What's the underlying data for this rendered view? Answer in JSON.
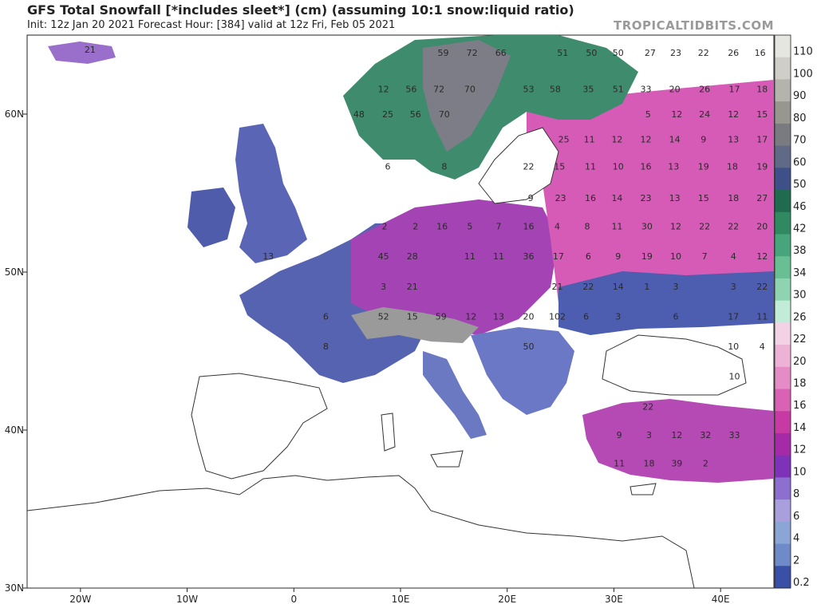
{
  "header": {
    "title": "GFS Total Snowfall [*includes sleet*] (cm) (assuming 10:1 snow:liquid ratio)",
    "subtitle": "Init: 12z Jan 20 2021   Forecast Hour: [384]   valid at 12z Fri, Feb 05 2021",
    "credit": "TROPICALTIDBITS.COM"
  },
  "map": {
    "x_axis": {
      "range": [
        -25,
        45
      ],
      "ticks": [
        -20,
        -10,
        0,
        10,
        20,
        30,
        40
      ],
      "tick_labels": [
        "20W",
        "10W",
        "0",
        "10E",
        "20E",
        "30E",
        "40E"
      ]
    },
    "y_axis": {
      "range": [
        30,
        65
      ],
      "ticks": [
        30,
        40,
        50,
        60
      ],
      "tick_labels": [
        "30N",
        "40N",
        "50N",
        "60N"
      ]
    }
  },
  "legend": {
    "levels": [
      "110",
      "100",
      "90",
      "80",
      "70",
      "60",
      "50",
      "46",
      "42",
      "38",
      "34",
      "30",
      "26",
      "22",
      "20",
      "18",
      "16",
      "14",
      "12",
      "10",
      "8",
      "6",
      "4",
      "2",
      "0.2"
    ],
    "colors": [
      "#e6e6e0",
      "#cfcfc7",
      "#b4b4ad",
      "#97978f",
      "#7a7b80",
      "#606a86",
      "#3f4f88",
      "#1f6b4f",
      "#2f8a62",
      "#46a57a",
      "#67bf93",
      "#8ed4b0",
      "#c2ecd8",
      "#f4d2e6",
      "#eeb2d6",
      "#e58cc6",
      "#d962b4",
      "#c83aa3",
      "#a52aa8",
      "#7d32b8",
      "#8c6fce",
      "#a89fdc",
      "#8ba6d6",
      "#6f8ac8",
      "#3a4fa6"
    ]
  },
  "values": [
    {
      "t": "21",
      "lon": -19.1,
      "lat": 64.1
    },
    {
      "t": "12",
      "lon": 8.4,
      "lat": 61.6
    },
    {
      "t": "56",
      "lon": 11.0,
      "lat": 61.6
    },
    {
      "t": "72",
      "lon": 13.6,
      "lat": 61.6
    },
    {
      "t": "70",
      "lon": 16.5,
      "lat": 61.6
    },
    {
      "t": "72",
      "lon": 16.7,
      "lat": 63.9
    },
    {
      "t": "66",
      "lon": 19.4,
      "lat": 63.9
    },
    {
      "t": "59",
      "lon": 14.0,
      "lat": 63.9
    },
    {
      "t": "51",
      "lon": 25.2,
      "lat": 63.9
    },
    {
      "t": "50",
      "lon": 27.9,
      "lat": 63.9
    },
    {
      "t": "50",
      "lon": 30.4,
      "lat": 63.9
    },
    {
      "t": "27",
      "lon": 33.4,
      "lat": 63.9
    },
    {
      "t": "23",
      "lon": 35.8,
      "lat": 63.9
    },
    {
      "t": "22",
      "lon": 38.4,
      "lat": 63.9
    },
    {
      "t": "26",
      "lon": 41.2,
      "lat": 63.9
    },
    {
      "t": "16",
      "lon": 43.7,
      "lat": 63.9
    },
    {
      "t": "53",
      "lon": 22.0,
      "lat": 61.6
    },
    {
      "t": "58",
      "lon": 24.5,
      "lat": 61.6
    },
    {
      "t": "35",
      "lon": 27.6,
      "lat": 61.6
    },
    {
      "t": "51",
      "lon": 30.4,
      "lat": 61.6
    },
    {
      "t": "33",
      "lon": 33.0,
      "lat": 61.6
    },
    {
      "t": "20",
      "lon": 35.7,
      "lat": 61.6
    },
    {
      "t": "26",
      "lon": 38.5,
      "lat": 61.6
    },
    {
      "t": "17",
      "lon": 41.3,
      "lat": 61.6
    },
    {
      "t": "18",
      "lon": 43.9,
      "lat": 61.6
    },
    {
      "t": "48",
      "lon": 6.1,
      "lat": 60.0
    },
    {
      "t": "25",
      "lon": 8.8,
      "lat": 60.0
    },
    {
      "t": "56",
      "lon": 11.4,
      "lat": 60.0
    },
    {
      "t": "70",
      "lon": 14.1,
      "lat": 60.0
    },
    {
      "t": "5",
      "lon": 33.2,
      "lat": 60.0
    },
    {
      "t": "12",
      "lon": 35.9,
      "lat": 60.0
    },
    {
      "t": "24",
      "lon": 38.5,
      "lat": 60.0
    },
    {
      "t": "12",
      "lon": 41.2,
      "lat": 60.0
    },
    {
      "t": "15",
      "lon": 43.9,
      "lat": 60.0
    },
    {
      "t": "25",
      "lon": 25.3,
      "lat": 58.4
    },
    {
      "t": "11",
      "lon": 27.7,
      "lat": 58.4
    },
    {
      "t": "12",
      "lon": 30.3,
      "lat": 58.4
    },
    {
      "t": "12",
      "lon": 33.0,
      "lat": 58.4
    },
    {
      "t": "14",
      "lon": 35.7,
      "lat": 58.4
    },
    {
      "t": "9",
      "lon": 38.4,
      "lat": 58.4
    },
    {
      "t": "13",
      "lon": 41.2,
      "lat": 58.4
    },
    {
      "t": "17",
      "lon": 43.9,
      "lat": 58.4
    },
    {
      "t": "6",
      "lon": 8.8,
      "lat": 56.7
    },
    {
      "t": "8",
      "lon": 14.1,
      "lat": 56.7
    },
    {
      "t": "22",
      "lon": 22.0,
      "lat": 56.7
    },
    {
      "t": "15",
      "lon": 24.9,
      "lat": 56.7
    },
    {
      "t": "11",
      "lon": 27.8,
      "lat": 56.7
    },
    {
      "t": "10",
      "lon": 30.4,
      "lat": 56.7
    },
    {
      "t": "16",
      "lon": 33.0,
      "lat": 56.7
    },
    {
      "t": "13",
      "lon": 35.6,
      "lat": 56.7
    },
    {
      "t": "19",
      "lon": 38.4,
      "lat": 56.7
    },
    {
      "t": "18",
      "lon": 41.1,
      "lat": 56.7
    },
    {
      "t": "19",
      "lon": 43.9,
      "lat": 56.7
    },
    {
      "t": "9",
      "lon": 22.2,
      "lat": 54.7
    },
    {
      "t": "23",
      "lon": 25.0,
      "lat": 54.7
    },
    {
      "t": "16",
      "lon": 27.8,
      "lat": 54.7
    },
    {
      "t": "14",
      "lon": 30.3,
      "lat": 54.7
    },
    {
      "t": "23",
      "lon": 33.0,
      "lat": 54.7
    },
    {
      "t": "13",
      "lon": 35.7,
      "lat": 54.7
    },
    {
      "t": "15",
      "lon": 38.4,
      "lat": 54.7
    },
    {
      "t": "18",
      "lon": 41.2,
      "lat": 54.7
    },
    {
      "t": "27",
      "lon": 43.9,
      "lat": 54.7
    },
    {
      "t": "2",
      "lon": 8.5,
      "lat": 52.9
    },
    {
      "t": "2",
      "lon": 11.4,
      "lat": 52.9
    },
    {
      "t": "16",
      "lon": 13.9,
      "lat": 52.9
    },
    {
      "t": "5",
      "lon": 16.5,
      "lat": 52.9
    },
    {
      "t": "7",
      "lon": 19.2,
      "lat": 52.9
    },
    {
      "t": "16",
      "lon": 22.0,
      "lat": 52.9
    },
    {
      "t": "4",
      "lon": 24.7,
      "lat": 52.9
    },
    {
      "t": "8",
      "lon": 27.5,
      "lat": 52.9
    },
    {
      "t": "11",
      "lon": 30.3,
      "lat": 52.9
    },
    {
      "t": "30",
      "lon": 33.1,
      "lat": 52.9
    },
    {
      "t": "12",
      "lon": 35.8,
      "lat": 52.9
    },
    {
      "t": "22",
      "lon": 38.5,
      "lat": 52.9
    },
    {
      "t": "22",
      "lon": 41.2,
      "lat": 52.9
    },
    {
      "t": "20",
      "lon": 43.9,
      "lat": 52.9
    },
    {
      "t": "13",
      "lon": -2.4,
      "lat": 51.0
    },
    {
      "t": "45",
      "lon": 8.4,
      "lat": 51.0
    },
    {
      "t": "28",
      "lon": 11.1,
      "lat": 51.0
    },
    {
      "t": "11",
      "lon": 16.5,
      "lat": 51.0
    },
    {
      "t": "11",
      "lon": 19.2,
      "lat": 51.0
    },
    {
      "t": "36",
      "lon": 22.0,
      "lat": 51.0
    },
    {
      "t": "17",
      "lon": 24.8,
      "lat": 51.0
    },
    {
      "t": "6",
      "lon": 27.6,
      "lat": 51.0
    },
    {
      "t": "9",
      "lon": 30.4,
      "lat": 51.0
    },
    {
      "t": "19",
      "lon": 33.1,
      "lat": 51.0
    },
    {
      "t": "10",
      "lon": 35.8,
      "lat": 51.0
    },
    {
      "t": "7",
      "lon": 38.5,
      "lat": 51.0
    },
    {
      "t": "4",
      "lon": 41.2,
      "lat": 51.0
    },
    {
      "t": "12",
      "lon": 43.9,
      "lat": 51.0
    },
    {
      "t": "3",
      "lon": 8.4,
      "lat": 49.1
    },
    {
      "t": "21",
      "lon": 11.1,
      "lat": 49.1
    },
    {
      "t": "21",
      "lon": 24.7,
      "lat": 49.1
    },
    {
      "t": "22",
      "lon": 27.6,
      "lat": 49.1
    },
    {
      "t": "14",
      "lon": 30.4,
      "lat": 49.1
    },
    {
      "t": "1",
      "lon": 33.1,
      "lat": 49.1
    },
    {
      "t": "3",
      "lon": 35.8,
      "lat": 49.1
    },
    {
      "t": "3",
      "lon": 41.2,
      "lat": 49.1
    },
    {
      "t": "22",
      "lon": 43.9,
      "lat": 49.1
    },
    {
      "t": "6",
      "lon": 3.0,
      "lat": 47.2
    },
    {
      "t": "52",
      "lon": 8.4,
      "lat": 47.2
    },
    {
      "t": "15",
      "lon": 11.1,
      "lat": 47.2
    },
    {
      "t": "59",
      "lon": 13.8,
      "lat": 47.2
    },
    {
      "t": "12",
      "lon": 16.6,
      "lat": 47.2
    },
    {
      "t": "13",
      "lon": 19.2,
      "lat": 47.2
    },
    {
      "t": "20",
      "lon": 22.0,
      "lat": 47.2
    },
    {
      "t": "102",
      "lon": 24.7,
      "lat": 47.2
    },
    {
      "t": "6",
      "lon": 27.4,
      "lat": 47.2
    },
    {
      "t": "3",
      "lon": 30.4,
      "lat": 47.2
    },
    {
      "t": "6",
      "lon": 35.8,
      "lat": 47.2
    },
    {
      "t": "17",
      "lon": 41.2,
      "lat": 47.2
    },
    {
      "t": "11",
      "lon": 43.9,
      "lat": 47.2
    },
    {
      "t": "8",
      "lon": 3.0,
      "lat": 45.3
    },
    {
      "t": "50",
      "lon": 22.0,
      "lat": 45.3
    },
    {
      "t": "10",
      "lon": 41.2,
      "lat": 45.3
    },
    {
      "t": "4",
      "lon": 43.9,
      "lat": 45.3
    },
    {
      "t": "10",
      "lon": 41.3,
      "lat": 43.4
    },
    {
      "t": "22",
      "lon": 33.2,
      "lat": 41.5
    },
    {
      "t": "9",
      "lon": 30.5,
      "lat": 39.7
    },
    {
      "t": "3",
      "lon": 33.3,
      "lat": 39.7
    },
    {
      "t": "12",
      "lon": 35.9,
      "lat": 39.7
    },
    {
      "t": "32",
      "lon": 38.6,
      "lat": 39.7
    },
    {
      "t": "33",
      "lon": 41.3,
      "lat": 39.7
    },
    {
      "t": "11",
      "lon": 30.5,
      "lat": 37.9
    },
    {
      "t": "18",
      "lon": 33.3,
      "lat": 37.9
    },
    {
      "t": "39",
      "lon": 35.9,
      "lat": 37.9
    },
    {
      "t": "2",
      "lon": 38.6,
      "lat": 37.9
    }
  ]
}
